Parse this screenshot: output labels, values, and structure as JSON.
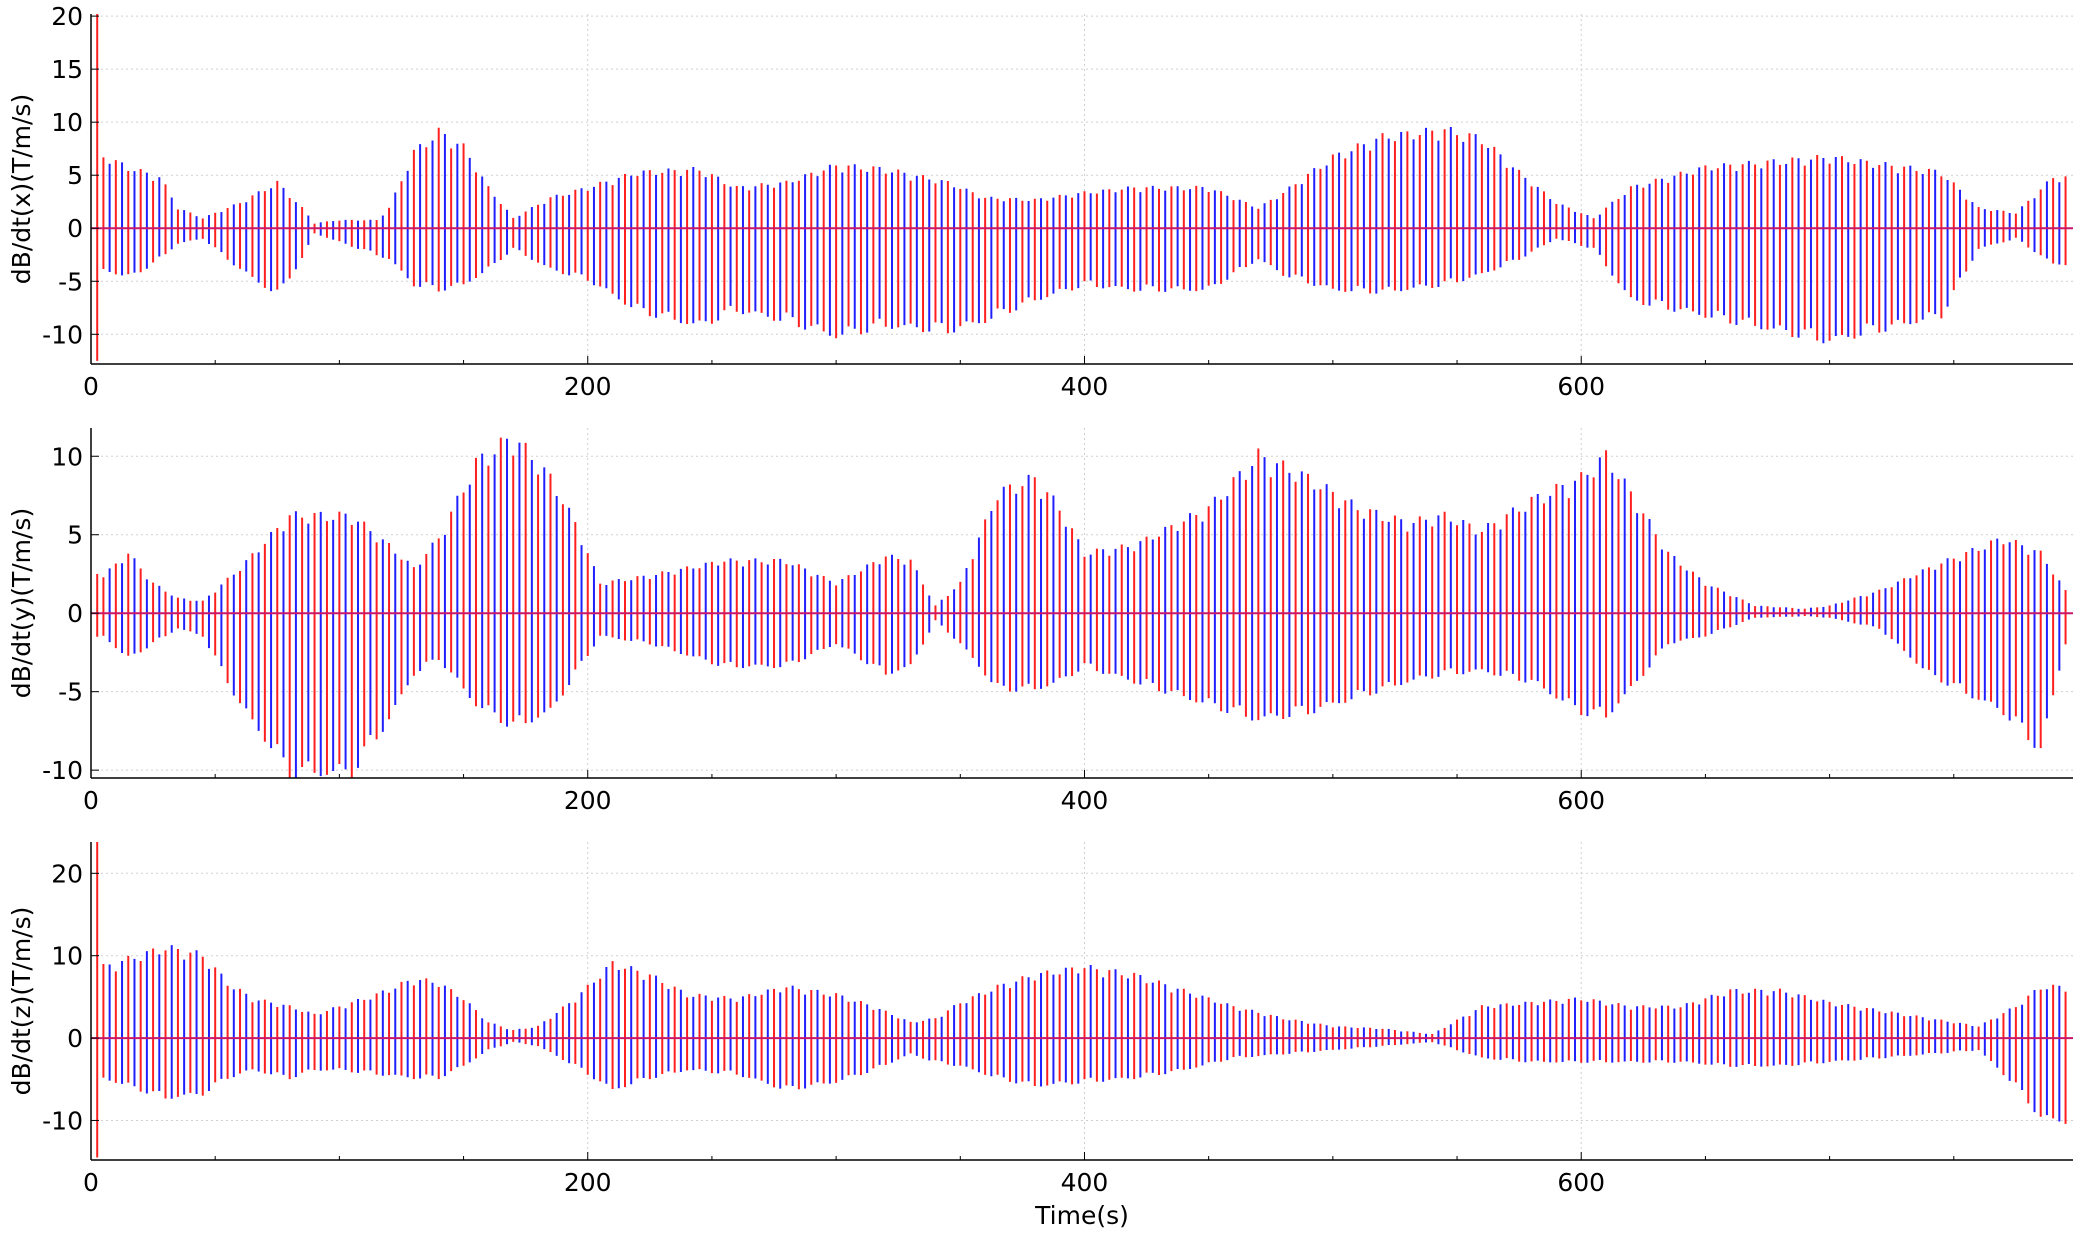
{
  "chart_data": [
    {
      "type": "line",
      "ylabel": "dB/dt(x)(T/m/s)",
      "xlabel": "",
      "xlim": [
        0,
        798
      ],
      "ylim": [
        -12.8,
        20.2
      ],
      "xticks": [
        0,
        200,
        400,
        600
      ],
      "yticks": [
        -10,
        -5,
        0,
        5,
        10,
        15,
        20
      ],
      "grid": true,
      "pulse_interval_s": 5,
      "series": [
        {
          "color": "#1f1fff",
          "offset_s": 2.5
        },
        {
          "color": "#ff1f1f",
          "offset_s": 0
        }
      ],
      "envelope": {
        "pos": [
          [
            0,
            24
          ],
          [
            5,
            7.2
          ],
          [
            10,
            6.5
          ],
          [
            20,
            5.6
          ],
          [
            28,
            5
          ],
          [
            35,
            2
          ],
          [
            45,
            1
          ],
          [
            60,
            2.5
          ],
          [
            75,
            4.5
          ],
          [
            85,
            2
          ],
          [
            90,
            0.5
          ],
          [
            100,
            0.8
          ],
          [
            115,
            0.8
          ],
          [
            120,
            2
          ],
          [
            130,
            7.5
          ],
          [
            140,
            9.5
          ],
          [
            150,
            8
          ],
          [
            160,
            4
          ],
          [
            170,
            1
          ],
          [
            185,
            3
          ],
          [
            200,
            4
          ],
          [
            220,
            5.5
          ],
          [
            245,
            5.8
          ],
          [
            260,
            4
          ],
          [
            280,
            4.5
          ],
          [
            300,
            6.2
          ],
          [
            320,
            5.8
          ],
          [
            345,
            4.5
          ],
          [
            360,
            3
          ],
          [
            380,
            2.8
          ],
          [
            400,
            3.5
          ],
          [
            420,
            4
          ],
          [
            450,
            4
          ],
          [
            470,
            2
          ],
          [
            480,
            3.5
          ],
          [
            500,
            7
          ],
          [
            520,
            9
          ],
          [
            545,
            9.7
          ],
          [
            560,
            8.8
          ],
          [
            575,
            5.5
          ],
          [
            590,
            2.5
          ],
          [
            605,
            1
          ],
          [
            620,
            4
          ],
          [
            650,
            6
          ],
          [
            700,
            7
          ],
          [
            745,
            5.5
          ],
          [
            760,
            2
          ],
          [
            775,
            1.5
          ],
          [
            790,
            5
          ]
        ],
        "neg": [
          [
            0,
            -12.5
          ],
          [
            5,
            -4
          ],
          [
            15,
            -4.8
          ],
          [
            25,
            -3.5
          ],
          [
            35,
            -1.5
          ],
          [
            45,
            -1
          ],
          [
            60,
            -4
          ],
          [
            75,
            -6.5
          ],
          [
            85,
            -3
          ],
          [
            90,
            -0.5
          ],
          [
            120,
            -3
          ],
          [
            130,
            -5.5
          ],
          [
            140,
            -6
          ],
          [
            150,
            -5.5
          ],
          [
            160,
            -4
          ],
          [
            170,
            -2
          ],
          [
            185,
            -4
          ],
          [
            200,
            -5
          ],
          [
            220,
            -8
          ],
          [
            245,
            -9.5
          ],
          [
            260,
            -8
          ],
          [
            280,
            -9
          ],
          [
            300,
            -10.5
          ],
          [
            320,
            -9.5
          ],
          [
            345,
            -10
          ],
          [
            360,
            -9
          ],
          [
            380,
            -7
          ],
          [
            400,
            -5.5
          ],
          [
            420,
            -6
          ],
          [
            450,
            -6
          ],
          [
            470,
            -3
          ],
          [
            480,
            -4.5
          ],
          [
            500,
            -6
          ],
          [
            520,
            -6.2
          ],
          [
            545,
            -5.5
          ],
          [
            560,
            -4.5
          ],
          [
            575,
            -3
          ],
          [
            590,
            -1
          ],
          [
            605,
            -2
          ],
          [
            620,
            -7
          ],
          [
            650,
            -8.5
          ],
          [
            700,
            -11
          ],
          [
            745,
            -8.5
          ],
          [
            760,
            -2
          ],
          [
            775,
            -1
          ],
          [
            790,
            -3.5
          ]
        ]
      }
    },
    {
      "type": "line",
      "ylabel": "dB/dt(y)(T/m/s)",
      "xlabel": "",
      "xlim": [
        0,
        798
      ],
      "ylim": [
        -10.5,
        11.8
      ],
      "xticks": [
        0,
        200,
        400,
        600
      ],
      "yticks": [
        -10,
        -5,
        0,
        5,
        10
      ],
      "grid": true,
      "pulse_interval_s": 5,
      "series": [
        {
          "color": "#1f1fff",
          "offset_s": 2.5
        },
        {
          "color": "#ff1f1f",
          "offset_s": 0
        }
      ],
      "envelope": {
        "pos": [
          [
            5,
            2.5
          ],
          [
            15,
            4
          ],
          [
            25,
            2
          ],
          [
            35,
            1
          ],
          [
            45,
            0.8
          ],
          [
            60,
            3
          ],
          [
            80,
            6.5
          ],
          [
            105,
            6.5
          ],
          [
            120,
            4.5
          ],
          [
            130,
            3
          ],
          [
            140,
            5
          ],
          [
            155,
            10
          ],
          [
            170,
            11.8
          ],
          [
            185,
            9
          ],
          [
            195,
            6
          ],
          [
            205,
            2
          ],
          [
            225,
            2.5
          ],
          [
            255,
            3.5
          ],
          [
            280,
            3.5
          ],
          [
            300,
            2
          ],
          [
            320,
            3.8
          ],
          [
            330,
            3.5
          ],
          [
            340,
            0.5
          ],
          [
            350,
            2
          ],
          [
            365,
            8
          ],
          [
            380,
            9
          ],
          [
            390,
            7
          ],
          [
            400,
            4
          ],
          [
            420,
            4.5
          ],
          [
            450,
            7
          ],
          [
            470,
            10.5
          ],
          [
            490,
            9
          ],
          [
            510,
            7
          ],
          [
            530,
            6
          ],
          [
            545,
            6.5
          ],
          [
            560,
            5.5
          ],
          [
            580,
            7.5
          ],
          [
            600,
            9
          ],
          [
            610,
            10.5
          ],
          [
            620,
            8
          ],
          [
            635,
            4
          ],
          [
            650,
            2
          ],
          [
            670,
            0.5
          ],
          [
            690,
            0.3
          ],
          [
            700,
            0.5
          ],
          [
            720,
            1.5
          ],
          [
            740,
            3
          ],
          [
            770,
            5
          ],
          [
            785,
            4
          ],
          [
            795,
            1.5
          ]
        ],
        "neg": [
          [
            5,
            -1.5
          ],
          [
            15,
            -3
          ],
          [
            25,
            -2
          ],
          [
            35,
            -1
          ],
          [
            45,
            -1.5
          ],
          [
            60,
            -6
          ],
          [
            80,
            -10.5
          ],
          [
            105,
            -10.5
          ],
          [
            120,
            -7
          ],
          [
            130,
            -4
          ],
          [
            140,
            -3
          ],
          [
            155,
            -6
          ],
          [
            170,
            -7.5
          ],
          [
            185,
            -6.5
          ],
          [
            195,
            -4
          ],
          [
            205,
            -1.5
          ],
          [
            225,
            -2
          ],
          [
            255,
            -3.5
          ],
          [
            280,
            -3.5
          ],
          [
            300,
            -2
          ],
          [
            320,
            -4
          ],
          [
            330,
            -3.5
          ],
          [
            340,
            -0.5
          ],
          [
            350,
            -2
          ],
          [
            365,
            -5
          ],
          [
            380,
            -5
          ],
          [
            390,
            -4.5
          ],
          [
            400,
            -3.5
          ],
          [
            420,
            -4.5
          ],
          [
            450,
            -6
          ],
          [
            470,
            -7
          ],
          [
            490,
            -6.5
          ],
          [
            510,
            -5.5
          ],
          [
            530,
            -4.5
          ],
          [
            545,
            -4
          ],
          [
            560,
            -3.8
          ],
          [
            580,
            -4.5
          ],
          [
            600,
            -6.5
          ],
          [
            610,
            -6.8
          ],
          [
            620,
            -5
          ],
          [
            635,
            -2
          ],
          [
            650,
            -1.5
          ],
          [
            670,
            -0.3
          ],
          [
            690,
            -0.2
          ],
          [
            700,
            -0.3
          ],
          [
            720,
            -1
          ],
          [
            740,
            -4
          ],
          [
            770,
            -6.5
          ],
          [
            785,
            -9
          ],
          [
            795,
            -2
          ]
        ]
      }
    },
    {
      "type": "line",
      "ylabel": "dB/dt(z)(T/m/s)",
      "xlabel": "Time(s)",
      "xlim": [
        0,
        798
      ],
      "ylim": [
        -14.8,
        23.8
      ],
      "xticks": [
        0,
        200,
        400,
        600
      ],
      "yticks": [
        -10,
        0,
        10,
        20
      ],
      "grid": true,
      "pulse_interval_s": 5,
      "series": [
        {
          "color": "#1f1fff",
          "offset_s": 2.5
        },
        {
          "color": "#ff1f1f",
          "offset_s": 0
        }
      ],
      "envelope": {
        "pos": [
          [
            0,
            24
          ],
          [
            5,
            9
          ],
          [
            15,
            10
          ],
          [
            30,
            11.5
          ],
          [
            45,
            10.5
          ],
          [
            55,
            7
          ],
          [
            65,
            5
          ],
          [
            80,
            4
          ],
          [
            90,
            3
          ],
          [
            100,
            4
          ],
          [
            115,
            5.5
          ],
          [
            130,
            7.5
          ],
          [
            140,
            7
          ],
          [
            150,
            5
          ],
          [
            160,
            2
          ],
          [
            170,
            1
          ],
          [
            180,
            1.5
          ],
          [
            195,
            5
          ],
          [
            210,
            9.5
          ],
          [
            225,
            8
          ],
          [
            240,
            5.5
          ],
          [
            260,
            5
          ],
          [
            280,
            6.5
          ],
          [
            300,
            5.5
          ],
          [
            315,
            4
          ],
          [
            330,
            2
          ],
          [
            340,
            2.5
          ],
          [
            350,
            4.5
          ],
          [
            365,
            6.5
          ],
          [
            380,
            8
          ],
          [
            400,
            9
          ],
          [
            420,
            8
          ],
          [
            440,
            6
          ],
          [
            460,
            4
          ],
          [
            480,
            2.5
          ],
          [
            500,
            1.5
          ],
          [
            520,
            1.2
          ],
          [
            540,
            0.5
          ],
          [
            560,
            4
          ],
          [
            580,
            4.5
          ],
          [
            600,
            5
          ],
          [
            620,
            4
          ],
          [
            640,
            4
          ],
          [
            660,
            6
          ],
          [
            680,
            6
          ],
          [
            700,
            4.5
          ],
          [
            720,
            3.5
          ],
          [
            740,
            2.5
          ],
          [
            760,
            1.5
          ],
          [
            775,
            4
          ],
          [
            785,
            6.5
          ],
          [
            795,
            6.5
          ]
        ],
        "neg": [
          [
            0,
            -14.5
          ],
          [
            5,
            -5
          ],
          [
            15,
            -6
          ],
          [
            30,
            -7.5
          ],
          [
            45,
            -7
          ],
          [
            55,
            -5
          ],
          [
            65,
            -4
          ],
          [
            80,
            -5
          ],
          [
            90,
            -4
          ],
          [
            100,
            -4
          ],
          [
            115,
            -4.5
          ],
          [
            130,
            -5
          ],
          [
            140,
            -5
          ],
          [
            150,
            -3.5
          ],
          [
            160,
            -1.5
          ],
          [
            170,
            -0.5
          ],
          [
            180,
            -1
          ],
          [
            195,
            -3.5
          ],
          [
            210,
            -6.5
          ],
          [
            225,
            -5
          ],
          [
            240,
            -4
          ],
          [
            260,
            -4.5
          ],
          [
            280,
            -6.5
          ],
          [
            300,
            -5.5
          ],
          [
            315,
            -4
          ],
          [
            330,
            -2
          ],
          [
            340,
            -3
          ],
          [
            350,
            -3.5
          ],
          [
            365,
            -5
          ],
          [
            380,
            -6
          ],
          [
            400,
            -5.5
          ],
          [
            420,
            -5
          ],
          [
            440,
            -4
          ],
          [
            460,
            -2.5
          ],
          [
            480,
            -2
          ],
          [
            500,
            -1.5
          ],
          [
            520,
            -1
          ],
          [
            540,
            -0.5
          ],
          [
            560,
            -2.5
          ],
          [
            580,
            -3
          ],
          [
            600,
            -3
          ],
          [
            620,
            -3
          ],
          [
            640,
            -3
          ],
          [
            660,
            -3.5
          ],
          [
            680,
            -3.5
          ],
          [
            700,
            -3
          ],
          [
            720,
            -2.5
          ],
          [
            740,
            -2
          ],
          [
            760,
            -1.5
          ],
          [
            775,
            -6
          ],
          [
            785,
            -10
          ],
          [
            795,
            -10.5
          ]
        ]
      }
    }
  ]
}
